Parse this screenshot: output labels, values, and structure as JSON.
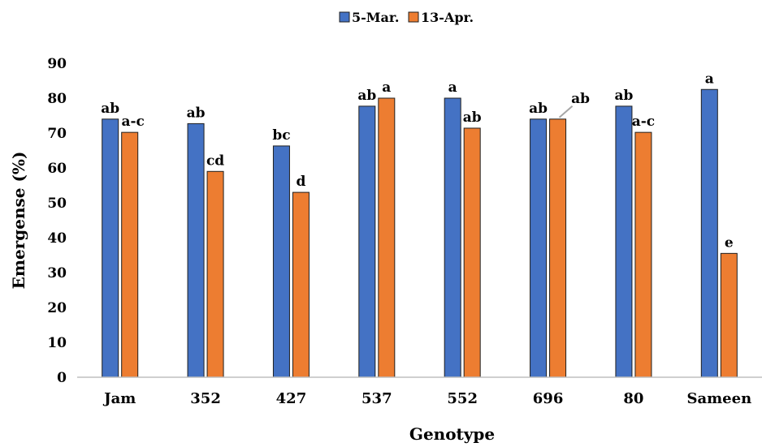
{
  "chart_data": {
    "type": "bar",
    "title": "",
    "xlabel": "Genotype",
    "ylabel": "Emergense (%)",
    "ylim": [
      0,
      90
    ],
    "yticks": [
      0,
      10,
      20,
      30,
      40,
      50,
      60,
      70,
      80,
      90
    ],
    "grid": false,
    "legend_position": "top-center",
    "categories": [
      "Jam",
      "352",
      "427",
      "537",
      "552",
      "696",
      "80",
      "Sameen"
    ],
    "series": [
      {
        "name": "5-Mar.",
        "color": "#4472C4",
        "values": [
          74,
          72.7,
          66.3,
          77.7,
          80,
          74,
          77.7,
          82.5
        ],
        "labels": [
          "ab",
          "ab",
          "bc",
          "ab",
          "a",
          "ab",
          "ab",
          "a"
        ]
      },
      {
        "name": "13-Apr.",
        "color": "#ED7D31",
        "values": [
          70.2,
          59,
          53,
          80,
          71.4,
          74,
          70.2,
          35.5
        ],
        "labels": [
          "a-c",
          "cd",
          "d",
          "a",
          "ab",
          "ab",
          "a-c",
          "e"
        ]
      }
    ]
  }
}
